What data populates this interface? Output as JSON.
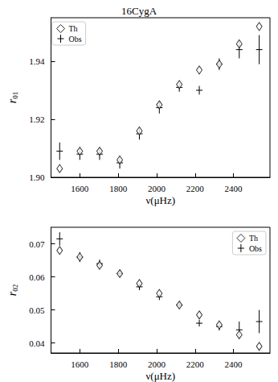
{
  "chart_data": [
    {
      "type": "scatter",
      "title": "16CygA",
      "x_label": "ν(μHz)",
      "y_label": "r01",
      "x": [
        1495,
        1600,
        1703,
        1808,
        1910,
        2014,
        2118,
        2222,
        2326,
        2430,
        2534
      ],
      "series": [
        {
          "name": "Th",
          "color": "#000000",
          "marker": "diamond",
          "values": [
            1.903,
            1.909,
            1.909,
            1.906,
            1.916,
            1.925,
            1.932,
            1.937,
            1.939,
            1.946,
            1.952
          ]
        },
        {
          "name": "Obs",
          "color": "#000000",
          "marker": "plus",
          "values": [
            1.909,
            1.908,
            1.908,
            1.905,
            1.915,
            1.924,
            1.931,
            1.93,
            1.939,
            1.944,
            1.944
          ],
          "errors": [
            0.003,
            0.002,
            0.002,
            0.002,
            0.002,
            0.002,
            0.0015,
            0.0015,
            0.002,
            0.003,
            0.005
          ]
        }
      ],
      "xlim": [
        1450,
        2590
      ],
      "ylim": [
        1.9,
        1.955
      ],
      "xticks": [
        1600,
        1800,
        2000,
        2200,
        2400
      ],
      "yticks": [
        {
          "value": 1.9,
          "label": "1.90"
        },
        {
          "value": 1.92,
          "label": "1.92"
        },
        {
          "value": 1.94,
          "label": "1.94"
        }
      ],
      "grid": false,
      "legend": "upper left"
    },
    {
      "type": "scatter",
      "x_label": "ν(μHz)",
      "y_label": "r02",
      "x": [
        1495,
        1600,
        1703,
        1808,
        1910,
        2014,
        2118,
        2222,
        2326,
        2430,
        2534
      ],
      "series": [
        {
          "name": "Th",
          "color": "#000000",
          "marker": "diamond",
          "values": [
            0.068,
            0.066,
            0.0635,
            0.061,
            0.058,
            0.055,
            0.0515,
            0.0485,
            0.0455,
            0.0425,
            0.039
          ]
        },
        {
          "name": "Obs",
          "color": "#000000",
          "marker": "plus",
          "values": [
            0.0715,
            0.066,
            0.064,
            0.061,
            0.057,
            0.054,
            0.0515,
            0.046,
            0.045,
            0.044,
            0.0465
          ],
          "errors": [
            0.002,
            0.0015,
            0.0012,
            0.001,
            0.001,
            0.001,
            0.0008,
            0.001,
            0.0012,
            0.0025,
            0.0035
          ]
        }
      ],
      "xlim": [
        1450,
        2590
      ],
      "ylim": [
        0.037,
        0.075
      ],
      "xticks": [
        1600,
        1800,
        2000,
        2200,
        2400
      ],
      "yticks": [
        0.04,
        0.05,
        0.06,
        0.07
      ],
      "grid": false,
      "legend": "upper right"
    }
  ]
}
